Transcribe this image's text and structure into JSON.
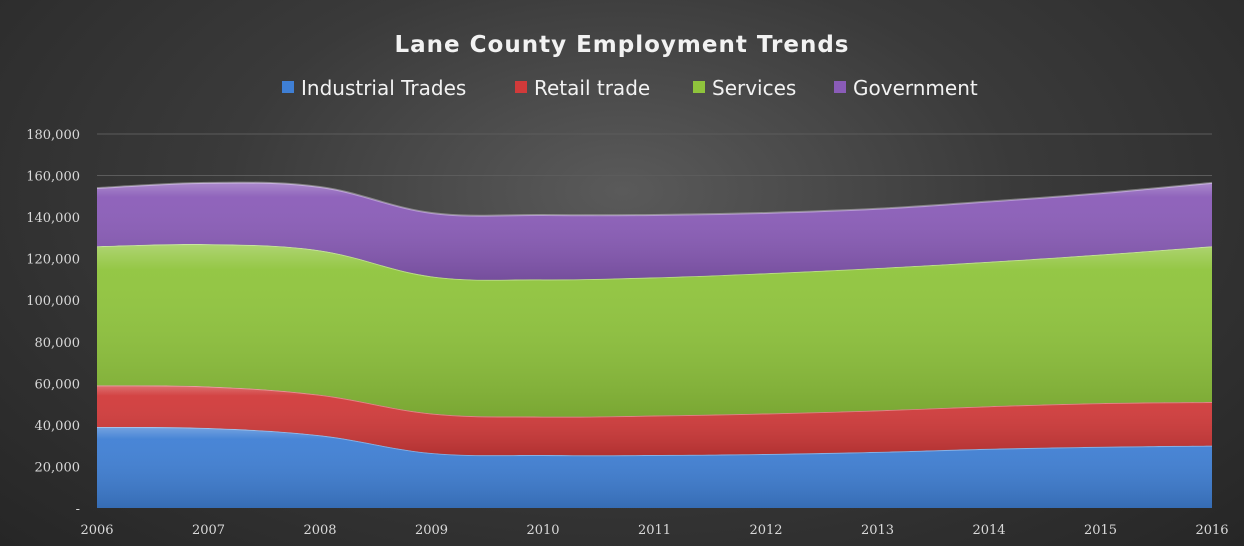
{
  "chart_data": {
    "type": "area",
    "stacked": true,
    "title": "Lane County Employment Trends",
    "x": [
      "2006",
      "2007",
      "2008",
      "2009",
      "2010",
      "2011",
      "2012",
      "2013",
      "2014",
      "2015",
      "2016"
    ],
    "series": [
      {
        "name": "Industrial Trades",
        "color": "#3f7fd4",
        "values": [
          39000,
          38500,
          35000,
          26500,
          25500,
          25500,
          26000,
          27000,
          28500,
          29500,
          30000
        ]
      },
      {
        "name": "Retail trade",
        "color": "#d13a3a",
        "values": [
          20000,
          20000,
          19500,
          19000,
          18500,
          19000,
          19500,
          20000,
          20500,
          21000,
          21000
        ]
      },
      {
        "name": "Services",
        "color": "#8fc43c",
        "values": [
          67000,
          68500,
          69500,
          66000,
          66000,
          66500,
          67500,
          68500,
          69500,
          71500,
          75000
        ]
      },
      {
        "name": "Government",
        "color": "#8a5cb8",
        "values": [
          28000,
          29500,
          30500,
          30500,
          31000,
          30000,
          29000,
          28500,
          29000,
          29500,
          30500
        ]
      }
    ],
    "ylim": [
      0,
      180000
    ],
    "y_ticks": [
      "-",
      "20,000",
      "40,000",
      "60,000",
      "80,000",
      "100,000",
      "120,000",
      "140,000",
      "160,000",
      "180,000"
    ],
    "grid": true,
    "legend_position": "top"
  }
}
